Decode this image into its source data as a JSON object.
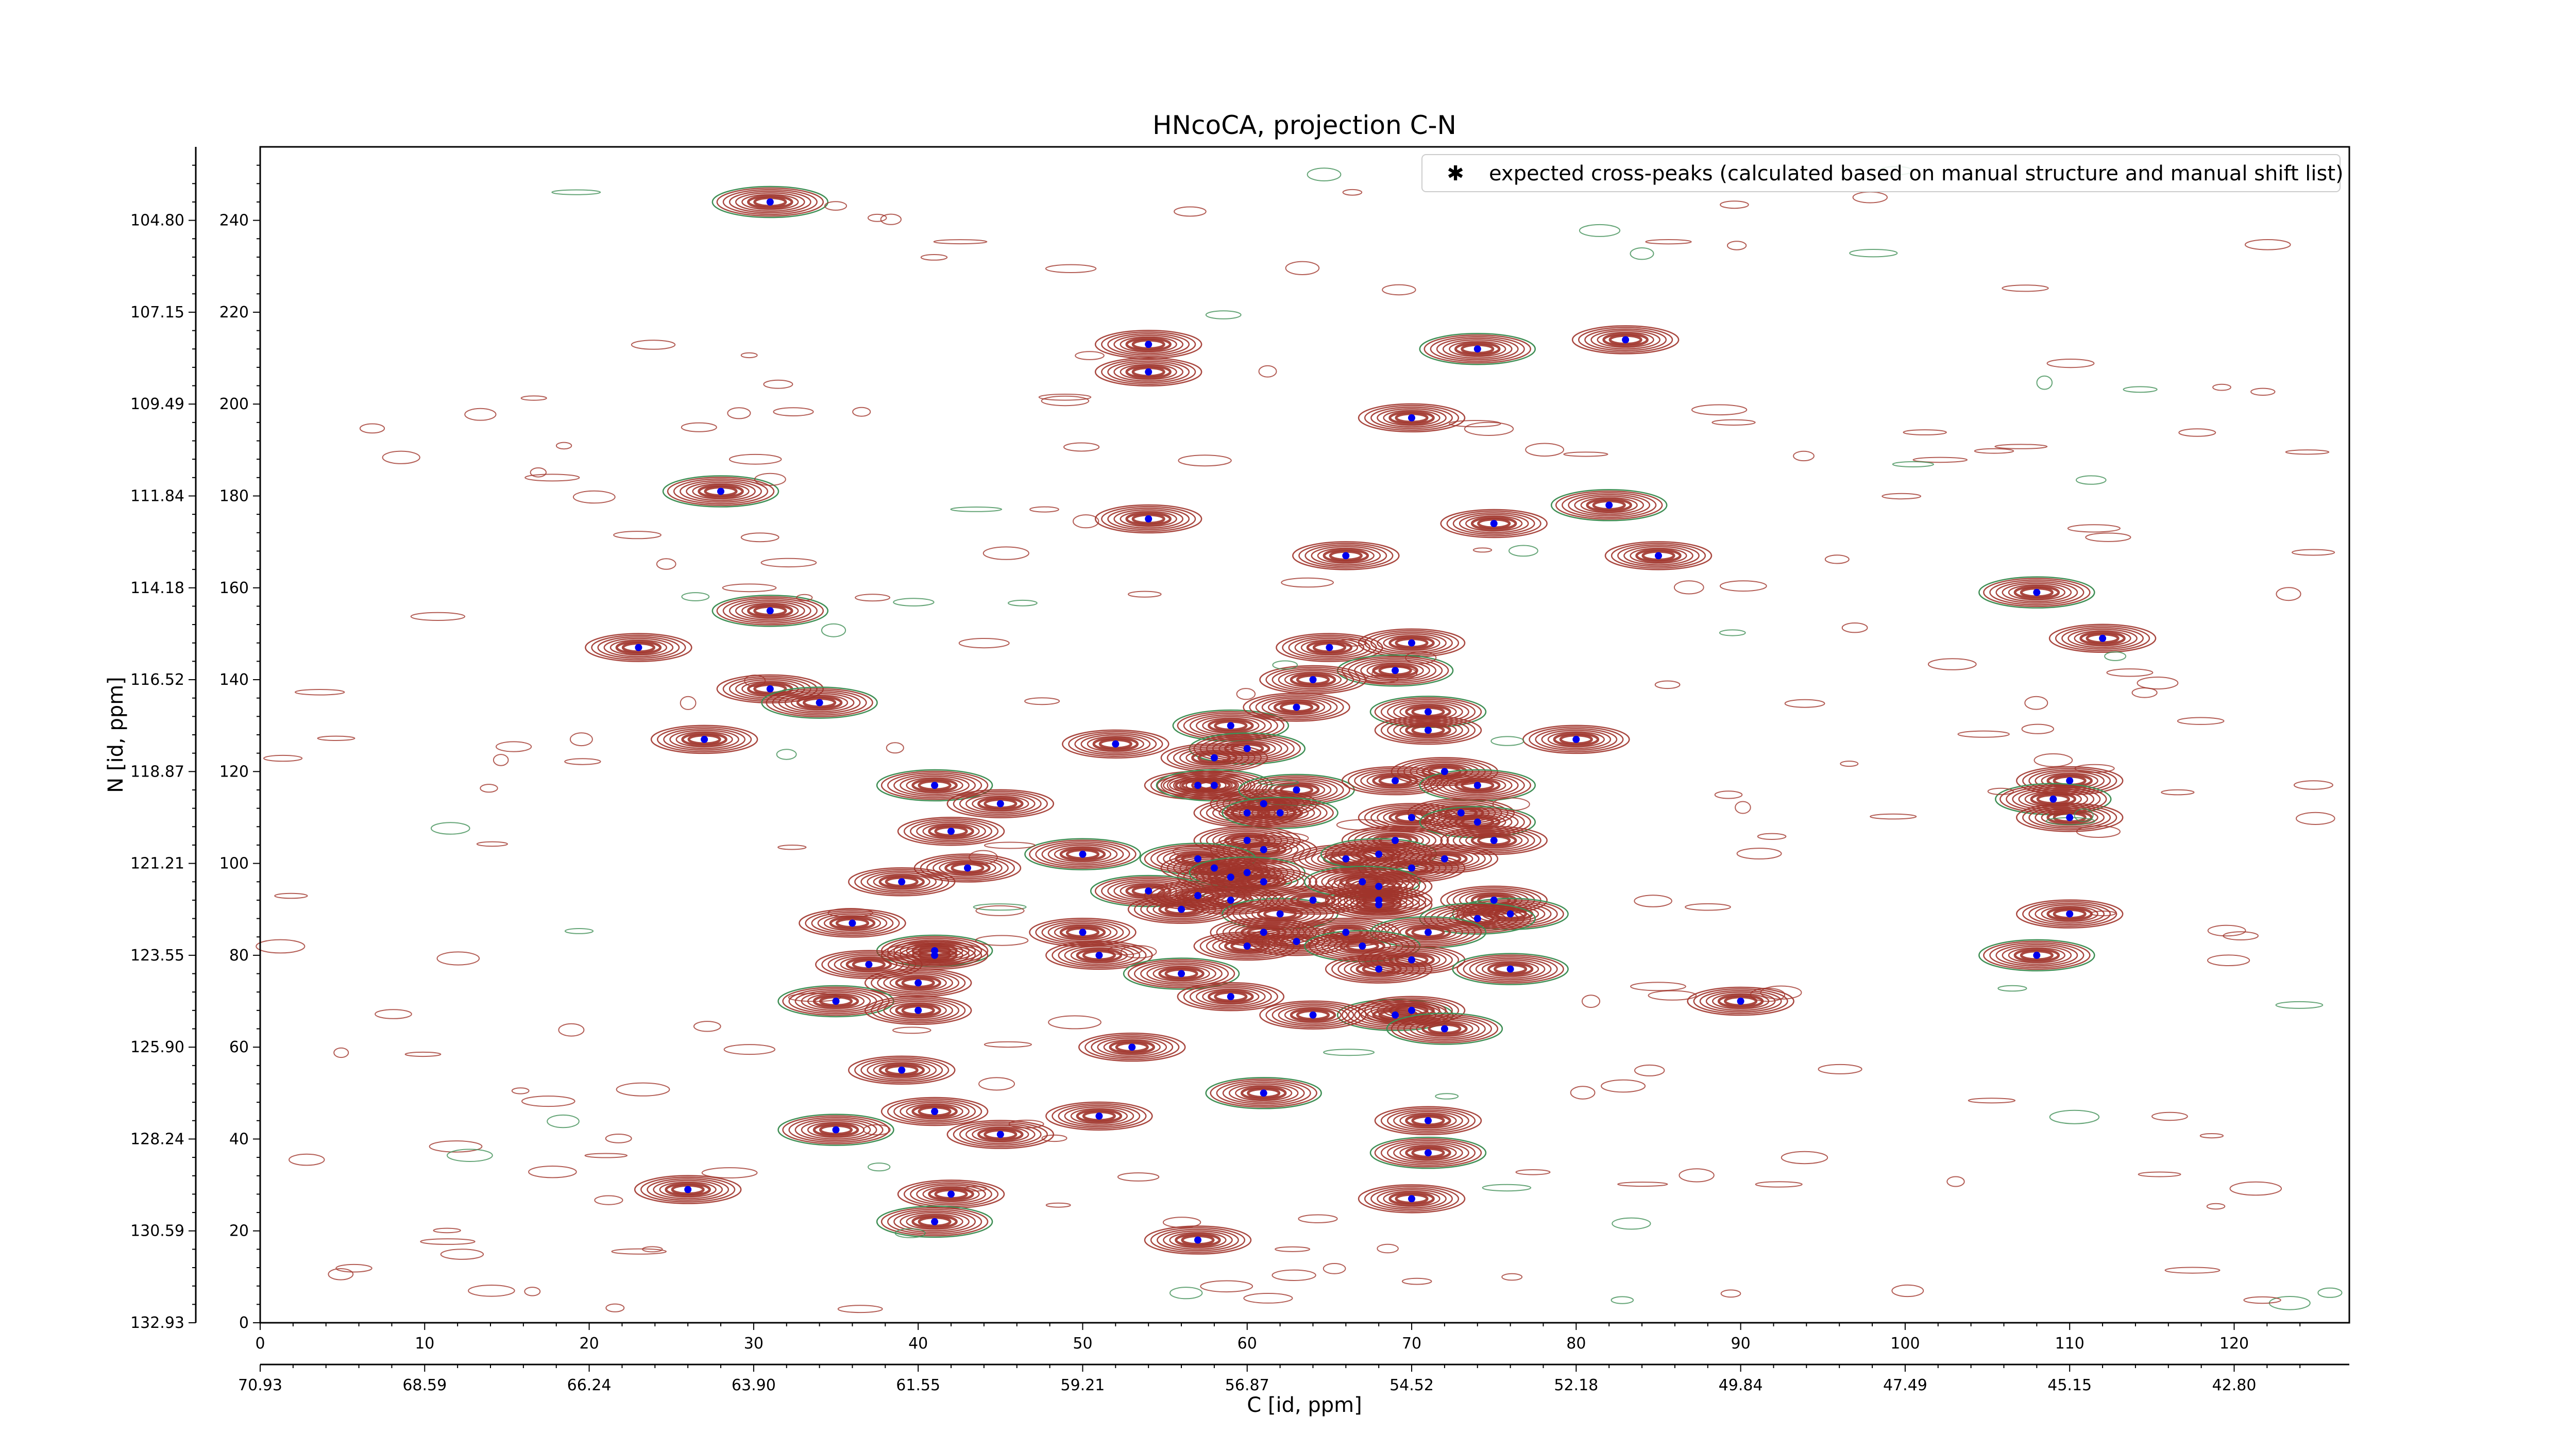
{
  "chart_data": {
    "type": "contour",
    "title": "HNcoCA, projection C-N",
    "xlabel": "C [id, ppm]",
    "ylabel": "N [id, ppm]",
    "xlim": [
      0,
      127
    ],
    "ylim": [
      0,
      256
    ],
    "x_ticks": [
      0,
      10,
      20,
      30,
      40,
      50,
      60,
      70,
      80,
      90,
      100,
      110,
      120
    ],
    "y_ticks": [
      0,
      20,
      40,
      60,
      80,
      100,
      120,
      140,
      160,
      180,
      200,
      220,
      240
    ],
    "x_ppm_ticks": [
      {
        "pos": 0,
        "label": "70.93"
      },
      {
        "pos": 10,
        "label": "68.59"
      },
      {
        "pos": 20,
        "label": "66.24"
      },
      {
        "pos": 30,
        "label": "63.90"
      },
      {
        "pos": 40,
        "label": "61.55"
      },
      {
        "pos": 50,
        "label": "59.21"
      },
      {
        "pos": 60,
        "label": "56.87"
      },
      {
        "pos": 70,
        "label": "54.52"
      },
      {
        "pos": 80,
        "label": "52.18"
      },
      {
        "pos": 90,
        "label": "49.84"
      },
      {
        "pos": 100,
        "label": "47.49"
      },
      {
        "pos": 110,
        "label": "45.15"
      },
      {
        "pos": 120,
        "label": "42.80"
      }
    ],
    "y_ppm_ticks": [
      {
        "pos": 0,
        "label": "132.93"
      },
      {
        "pos": 20,
        "label": "130.59"
      },
      {
        "pos": 40,
        "label": "128.24"
      },
      {
        "pos": 60,
        "label": "125.90"
      },
      {
        "pos": 80,
        "label": "123.55"
      },
      {
        "pos": 100,
        "label": "121.21"
      },
      {
        "pos": 120,
        "label": "118.87"
      },
      {
        "pos": 140,
        "label": "116.52"
      },
      {
        "pos": 160,
        "label": "114.18"
      },
      {
        "pos": 180,
        "label": "111.84"
      },
      {
        "pos": 200,
        "label": "109.49"
      },
      {
        "pos": 220,
        "label": "107.15"
      },
      {
        "pos": 240,
        "label": "104.80"
      }
    ],
    "legend": {
      "position": "top-right",
      "label": "expected cross-peaks (calculated based on manual structure and manual shift list)"
    },
    "colors": {
      "positive": "#a0342b",
      "negative": "#3f8f55",
      "marker": "#0000ee"
    },
    "expected_peaks": [
      [
        31,
        244
      ],
      [
        54,
        213
      ],
      [
        54,
        207
      ],
      [
        74,
        212
      ],
      [
        83,
        214
      ],
      [
        70,
        197
      ],
      [
        28,
        181
      ],
      [
        54,
        175
      ],
      [
        75,
        174
      ],
      [
        82,
        178
      ],
      [
        66,
        167
      ],
      [
        85,
        167
      ],
      [
        31,
        155
      ],
      [
        23,
        147
      ],
      [
        31,
        138
      ],
      [
        34,
        135
      ],
      [
        27,
        127
      ],
      [
        52,
        126
      ],
      [
        59,
        130
      ],
      [
        65,
        147
      ],
      [
        70,
        148
      ],
      [
        69,
        142
      ],
      [
        64,
        140
      ],
      [
        63,
        134
      ],
      [
        71,
        133
      ],
      [
        80,
        127
      ],
      [
        71,
        129
      ],
      [
        41,
        117
      ],
      [
        45,
        113
      ],
      [
        42,
        107
      ],
      [
        50,
        102
      ],
      [
        43,
        99
      ],
      [
        39,
        96
      ],
      [
        60,
        125
      ],
      [
        58,
        123
      ],
      [
        57,
        117
      ],
      [
        58,
        117
      ],
      [
        60,
        111
      ],
      [
        61,
        113
      ],
      [
        63,
        116
      ],
      [
        69,
        118
      ],
      [
        72,
        120
      ],
      [
        74,
        117
      ],
      [
        73,
        111
      ],
      [
        70,
        110
      ],
      [
        74,
        109
      ],
      [
        75,
        105
      ],
      [
        69,
        105
      ],
      [
        62,
        111
      ],
      [
        61,
        103
      ],
      [
        60,
        105
      ],
      [
        57,
        101
      ],
      [
        58,
        99
      ],
      [
        59,
        97
      ],
      [
        60,
        98
      ],
      [
        61,
        96
      ],
      [
        66,
        101
      ],
      [
        68,
        102
      ],
      [
        70,
        99
      ],
      [
        72,
        101
      ],
      [
        54,
        94
      ],
      [
        57,
        93
      ],
      [
        59,
        92
      ],
      [
        62,
        89
      ],
      [
        56,
        90
      ],
      [
        64,
        92
      ],
      [
        67,
        96
      ],
      [
        68,
        95
      ],
      [
        75,
        92
      ],
      [
        76,
        89
      ],
      [
        68,
        91
      ],
      [
        68,
        92
      ],
      [
        74,
        88
      ],
      [
        66,
        85
      ],
      [
        61,
        85
      ],
      [
        71,
        85
      ],
      [
        50,
        85
      ],
      [
        36,
        87
      ],
      [
        41,
        81
      ],
      [
        37,
        78
      ],
      [
        51,
        80
      ],
      [
        56,
        76
      ],
      [
        60,
        82
      ],
      [
        63,
        83
      ],
      [
        67,
        82
      ],
      [
        70,
        79
      ],
      [
        68,
        77
      ],
      [
        76,
        77
      ],
      [
        40,
        74
      ],
      [
        41,
        80
      ],
      [
        35,
        70
      ],
      [
        40,
        68
      ],
      [
        59,
        71
      ],
      [
        69,
        67
      ],
      [
        70,
        68
      ],
      [
        64,
        67
      ],
      [
        72,
        64
      ],
      [
        53,
        60
      ],
      [
        39,
        55
      ],
      [
        61,
        50
      ],
      [
        41,
        46
      ],
      [
        51,
        45
      ],
      [
        35,
        42
      ],
      [
        45,
        41
      ],
      [
        71,
        44
      ],
      [
        71,
        37
      ],
      [
        70,
        27
      ],
      [
        42,
        28
      ],
      [
        41,
        22
      ],
      [
        26,
        29
      ],
      [
        57,
        18
      ],
      [
        108,
        159
      ],
      [
        112,
        149
      ],
      [
        110,
        118
      ],
      [
        109,
        114
      ],
      [
        110,
        110
      ],
      [
        110,
        89
      ],
      [
        108,
        80
      ],
      [
        90,
        70
      ]
    ]
  }
}
